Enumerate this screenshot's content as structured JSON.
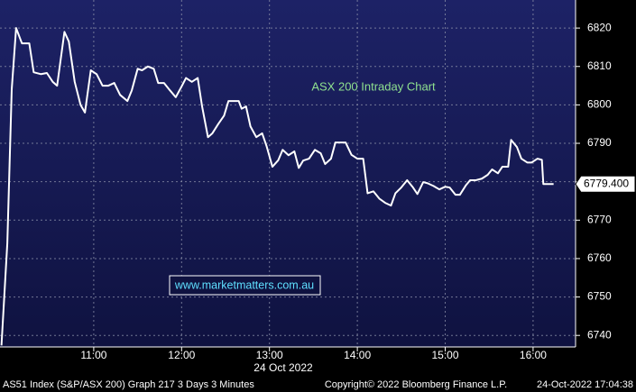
{
  "chart_data": {
    "type": "line",
    "title": "ASX 200 Intraday Chart",
    "watermark": "www.marketmatters.com.au",
    "date_label": "24 Oct 2022",
    "footer_left": "AS51 Index (S&P/ASX 200) Graph 217 3 Days 3 Minutes",
    "footer_center": "Copyright© 2022 Bloomberg Finance L.P.",
    "footer_right": "24-Oct-2022 17:04:38",
    "grid": true,
    "color": "#ffffff",
    "x": [
      597,
      601,
      604,
      607,
      611,
      616,
      619,
      624,
      628,
      632,
      635,
      640,
      643,
      647,
      651,
      654,
      658,
      662,
      666,
      670,
      674,
      678,
      683,
      686,
      690,
      693,
      697,
      701,
      704,
      708,
      712,
      716,
      720,
      723,
      727,
      731,
      734,
      738,
      741,
      745,
      749,
      752,
      755,
      759,
      761,
      764,
      767,
      771,
      775,
      778,
      782,
      786,
      789,
      793,
      797,
      800,
      803,
      807,
      811,
      815,
      818,
      822,
      825,
      829,
      832,
      836,
      840,
      844,
      847,
      851,
      855,
      859,
      863,
      866,
      870,
      874,
      878,
      881,
      885,
      888,
      892,
      896,
      900,
      903,
      907,
      910,
      914,
      917,
      921,
      925,
      929,
      932,
      936,
      939,
      943,
      945,
      949,
      952,
      956,
      959,
      963,
      966,
      967,
      970,
      974
    ],
    "values": [
      6737.4,
      6764,
      6804,
      6820,
      6816,
      6816,
      6808.5,
      6808,
      6808.3,
      6806,
      6805,
      6819,
      6816.5,
      6806,
      6800,
      6798,
      6809,
      6808,
      6805,
      6805,
      6805.7,
      6802.6,
      6801,
      6803.8,
      6809.4,
      6809,
      6810,
      6809.4,
      6805.7,
      6805.7,
      6803.8,
      6802,
      6804.8,
      6807,
      6806,
      6807,
      6799.6,
      6791.6,
      6792.6,
      6795,
      6797.2,
      6801,
      6801,
      6801,
      6799,
      6799.6,
      6794.4,
      6791.6,
      6792.6,
      6789.3,
      6783.9,
      6785.6,
      6788.3,
      6786.9,
      6787.9,
      6783.6,
      6785.5,
      6786,
      6788.3,
      6787.4,
      6784.6,
      6786,
      6790.2,
      6790.2,
      6790.2,
      6787,
      6786,
      6786,
      6777,
      6777.5,
      6775.6,
      6774.5,
      6773.8,
      6777,
      6778.5,
      6780.4,
      6778.5,
      6776.8,
      6779.9,
      6779.6,
      6778.9,
      6778,
      6778.7,
      6778.5,
      6776.6,
      6776.6,
      6779,
      6780.4,
      6780.4,
      6780.8,
      6781.8,
      6783.2,
      6782.2,
      6783.9,
      6783.9,
      6790.9,
      6789,
      6786,
      6785,
      6785,
      6786,
      6785.7,
      6779.4,
      6779.4,
      6779.4
    ],
    "last_price": {
      "value": 6779.4,
      "label": "6779.400"
    },
    "xlim": [
      596,
      989
    ],
    "xticks": [
      {
        "value": 660,
        "label": "11:00"
      },
      {
        "value": 720,
        "label": "12:00"
      },
      {
        "value": 780,
        "label": "13:00"
      },
      {
        "value": 840,
        "label": "14:00"
      },
      {
        "value": 900,
        "label": "15:00"
      },
      {
        "value": 960,
        "label": "16:00"
      }
    ],
    "ylim": [
      6737,
      6827.3
    ],
    "yticks": [
      6740,
      6750,
      6760,
      6770,
      6780,
      6790,
      6800,
      6810,
      6820
    ]
  }
}
